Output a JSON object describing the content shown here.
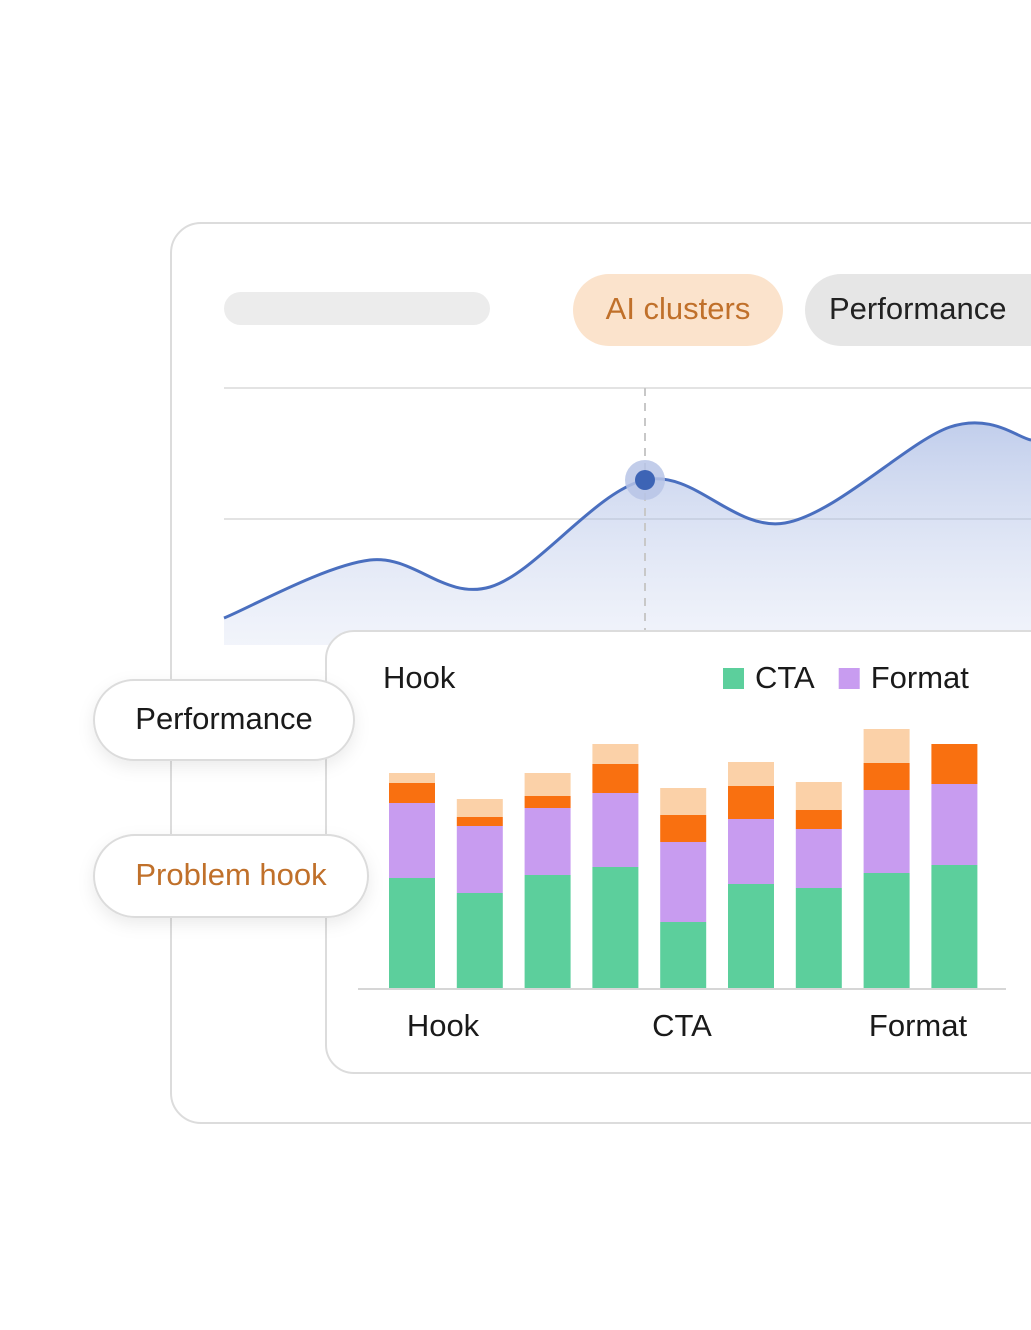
{
  "tabs": [
    "AI clusters",
    "Performance"
  ],
  "pills": [
    "Performance",
    "Problem hook"
  ],
  "chart_data": [
    {
      "type": "line",
      "x": [
        0,
        146,
        266,
        421,
        561,
        726,
        807
      ],
      "values": [
        27,
        85,
        58,
        165,
        122,
        218,
        205
      ],
      "xlim": [
        0,
        807
      ],
      "ylim": [
        0,
        257
      ],
      "highlight": 3,
      "color": "#4a6fbf"
    },
    {
      "type": "bar",
      "stacked": true,
      "title": "Hook",
      "groups": [
        "Hook",
        "CTA",
        "Format"
      ],
      "series": [
        {
          "name": "CTA",
          "color": "#5ccf9c",
          "values": [
            110,
            95,
            113,
            121,
            66,
            104,
            100,
            115,
            123
          ]
        },
        {
          "name": "Format",
          "color": "#c89cf0",
          "values": [
            75,
            67,
            67,
            74,
            80,
            65,
            59,
            83,
            81
          ]
        },
        {
          "color": "#f97010",
          "values": [
            20,
            9,
            12,
            29,
            27,
            33,
            19,
            27,
            40
          ]
        },
        {
          "color": "#fbd1a8",
          "values": [
            10,
            18,
            23,
            20,
            27,
            24,
            28,
            34,
            0
          ]
        }
      ],
      "ylim": [
        0,
        270
      ]
    }
  ]
}
